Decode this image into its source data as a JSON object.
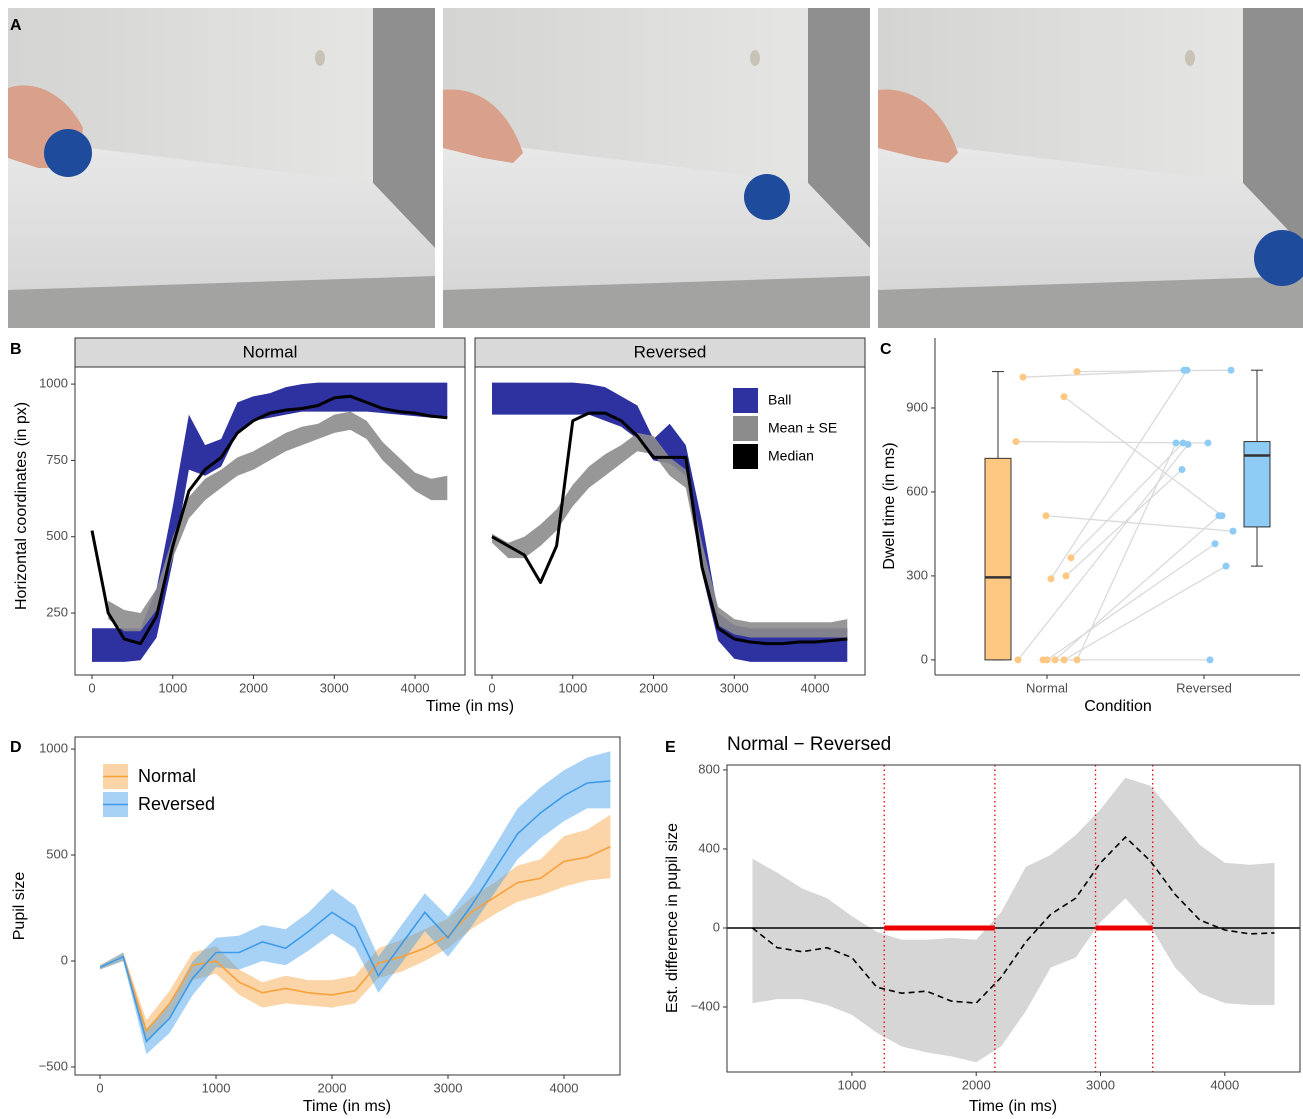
{
  "photo_panel": {
    "label": "A"
  },
  "chart_data": [
    {
      "type": "facet-ribbon",
      "label": "B",
      "x_label": "Time (in ms)",
      "y_label": "Horizontal coordinates (in px)",
      "xlim": [
        -211,
        4619
      ],
      "ylim": [
        47,
        1056
      ],
      "xticks": [
        0,
        1000,
        2000,
        3000,
        4000
      ],
      "yticks": [
        250,
        500,
        750,
        1000
      ],
      "x": [
        0,
        200,
        400,
        600,
        800,
        1000,
        1200,
        1400,
        1600,
        1800,
        2000,
        2200,
        2400,
        2600,
        2800,
        3000,
        3200,
        3400,
        3600,
        3800,
        4000,
        4200,
        4400
      ],
      "legend": [
        {
          "name": "Ball",
          "color": "#2e31a0"
        },
        {
          "name": "Mean ± SE",
          "color": "#8c8c8c"
        },
        {
          "name": "Median",
          "color": "#000000"
        }
      ],
      "facets": [
        {
          "name": "Normal",
          "ball_low": [
            90,
            90,
            90,
            95,
            170,
            420,
            720,
            700,
            730,
            840,
            880,
            890,
            900,
            910,
            910,
            910,
            910,
            910,
            905,
            900,
            895,
            890,
            890
          ],
          "ball_high": [
            200,
            200,
            200,
            200,
            330,
            600,
            900,
            800,
            820,
            940,
            960,
            970,
            990,
            1000,
            1005,
            1005,
            1005,
            1005,
            1005,
            1005,
            1005,
            1005,
            1005
          ],
          "mean_low": [
            null,
            230,
            190,
            190,
            260,
            430,
            560,
            620,
            660,
            700,
            720,
            750,
            780,
            800,
            820,
            840,
            850,
            820,
            750,
            700,
            650,
            620,
            620
          ],
          "mean_high": [
            null,
            290,
            260,
            250,
            330,
            500,
            630,
            690,
            720,
            760,
            780,
            810,
            840,
            860,
            870,
            900,
            910,
            880,
            810,
            760,
            710,
            690,
            700
          ],
          "median": [
            520,
            250,
            165,
            150,
            240,
            470,
            650,
            720,
            760,
            840,
            880,
            905,
            915,
            920,
            930,
            955,
            960,
            940,
            920,
            910,
            905,
            895,
            890
          ]
        },
        {
          "name": "Reversed",
          "ball_low": [
            900,
            900,
            900,
            900,
            900,
            900,
            900,
            880,
            860,
            820,
            750,
            740,
            700,
            380,
            160,
            100,
            90,
            90,
            90,
            90,
            90,
            90,
            90
          ],
          "ball_high": [
            1005,
            1005,
            1005,
            1005,
            1005,
            1005,
            1000,
            990,
            960,
            930,
            820,
            870,
            800,
            550,
            250,
            210,
            200,
            200,
            200,
            200,
            200,
            200,
            200
          ],
          "mean_low": [
            480,
            430,
            430,
            470,
            520,
            600,
            660,
            700,
            740,
            780,
            770,
            700,
            660,
            400,
            210,
            180,
            170,
            170,
            170,
            170,
            170,
            170,
            170
          ],
          "mean_high": [
            510,
            480,
            500,
            540,
            590,
            670,
            730,
            770,
            800,
            840,
            830,
            760,
            720,
            480,
            270,
            230,
            220,
            220,
            220,
            220,
            220,
            220,
            230
          ],
          "median": [
            500,
            470,
            440,
            350,
            470,
            880,
            905,
            905,
            880,
            830,
            760,
            760,
            760,
            400,
            200,
            165,
            155,
            150,
            150,
            155,
            155,
            160,
            165
          ]
        }
      ]
    },
    {
      "type": "box-paired",
      "label": "C",
      "x_label": "Condition",
      "y_label": "Dwell time (in ms)",
      "ylim": [
        -54,
        1150
      ],
      "yticks": [
        0,
        300,
        600,
        900
      ],
      "categories": [
        "Normal",
        "Reversed"
      ],
      "groups": [
        {
          "color": "#ffc882",
          "values": [
            1010,
            780,
            515,
            0,
            0,
            0,
            0,
            0,
            0,
            290,
            300,
            365,
            940,
            1030
          ],
          "box": {
            "min": 0,
            "q1": 0,
            "median": 295,
            "q3": 720,
            "max": 1030
          }
        },
        {
          "color": "#8ecbf5",
          "values": [
            1035,
            775,
            460,
            770,
            0,
            415,
            515,
            335,
            775,
            1035,
            680,
            775,
            515,
            1035
          ],
          "box": {
            "min": 335,
            "q1": 475,
            "median": 730,
            "q3": 780,
            "max": 1035
          }
        }
      ]
    },
    {
      "type": "ribbon-line",
      "label": "D",
      "x_label": "Time (in ms)",
      "y_label": "Pupil size",
      "legend": "top-left",
      "xlim": [
        -216,
        4483
      ],
      "ylim": [
        -538,
        1057
      ],
      "xticks": [
        0,
        1000,
        2000,
        3000,
        4000
      ],
      "yticks": [
        {
          "value": -500,
          "label": "−500"
        },
        0,
        500,
        1000
      ],
      "x": [
        0,
        200,
        400,
        600,
        800,
        1000,
        1200,
        1400,
        1600,
        1800,
        2000,
        2200,
        2400,
        2600,
        2800,
        3000,
        3200,
        3400,
        3600,
        3800,
        4000,
        4200,
        4400
      ],
      "series": [
        {
          "name": "Normal",
          "color": "#f7a13c",
          "values": [
            -30,
            20,
            -330,
            -200,
            -20,
            0,
            -100,
            -150,
            -130,
            -150,
            -160,
            -140,
            -10,
            20,
            60,
            120,
            230,
            300,
            370,
            390,
            470,
            490,
            540
          ],
          "low": [
            -40,
            0,
            -380,
            -260,
            -90,
            -60,
            -160,
            -220,
            -200,
            -210,
            -220,
            -200,
            -80,
            -50,
            0,
            60,
            150,
            220,
            280,
            310,
            350,
            380,
            390
          ],
          "high": [
            -20,
            40,
            -280,
            -140,
            40,
            70,
            -40,
            -100,
            -70,
            -90,
            -90,
            -70,
            60,
            100,
            150,
            200,
            300,
            370,
            450,
            480,
            590,
            620,
            690
          ]
        },
        {
          "name": "Reversed",
          "color": "#3d9be9",
          "values": [
            -30,
            20,
            -380,
            -270,
            -80,
            40,
            40,
            90,
            60,
            140,
            230,
            160,
            -70,
            80,
            230,
            110,
            260,
            430,
            600,
            700,
            780,
            840,
            850
          ],
          "low": [
            -40,
            0,
            -440,
            -340,
            -160,
            -30,
            -40,
            0,
            -20,
            50,
            130,
            60,
            -150,
            -10,
            140,
            20,
            160,
            320,
            480,
            580,
            660,
            720,
            720
          ],
          "high": [
            -20,
            40,
            -320,
            -200,
            0,
            110,
            120,
            170,
            150,
            230,
            340,
            260,
            20,
            170,
            320,
            210,
            360,
            540,
            720,
            820,
            900,
            960,
            990
          ]
        }
      ]
    },
    {
      "type": "difference",
      "label": "E",
      "title": "Normal − Reversed",
      "x_label": "Time (in ms)",
      "y_label": "Est. difference in pupil size",
      "xlim": [
        -5,
        4605
      ],
      "ylim": [
        -729,
        825
      ],
      "xticks": [
        1000,
        2000,
        3000,
        4000
      ],
      "yticks": [
        {
          "value": -400,
          "label": "−400"
        },
        0,
        400,
        800
      ],
      "x": [
        200,
        400,
        600,
        800,
        1000,
        1200,
        1400,
        1600,
        1800,
        2000,
        2200,
        2400,
        2600,
        2800,
        3000,
        3200,
        3400,
        3600,
        3800,
        4000,
        4200,
        4400
      ],
      "values": [
        0,
        -100,
        -120,
        -100,
        -150,
        -300,
        -330,
        -320,
        -370,
        -380,
        -250,
        -70,
        70,
        150,
        330,
        460,
        340,
        170,
        40,
        -10,
        -30,
        -25
      ],
      "low": [
        -380,
        -360,
        -360,
        -390,
        -440,
        -530,
        -600,
        -630,
        -650,
        -680,
        -600,
        -420,
        -200,
        -150,
        30,
        150,
        10,
        -200,
        -330,
        -380,
        -390,
        -390
      ],
      "high": [
        350,
        280,
        200,
        150,
        60,
        -20,
        -60,
        -60,
        -50,
        -60,
        80,
        310,
        370,
        470,
        600,
        760,
        720,
        570,
        420,
        330,
        320,
        330
      ],
      "band_color": "#d6d6d6",
      "line_color": "#000000",
      "significant_color": "#ee0000",
      "significant": [
        [
          1260,
          2150
        ],
        [
          2960,
          3420
        ]
      ]
    }
  ]
}
